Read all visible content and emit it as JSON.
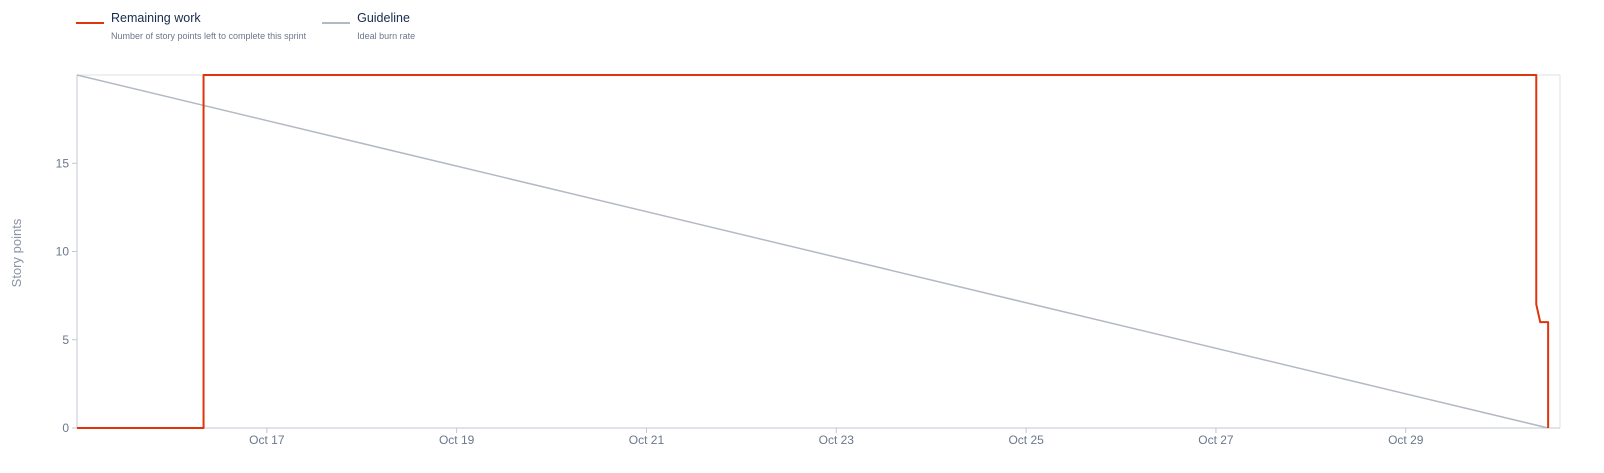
{
  "legend": [
    {
      "name": "Remaining work",
      "desc": "Number of story points left to complete this sprint",
      "color": "#de350b"
    },
    {
      "name": "Guideline",
      "desc": "Ideal burn rate",
      "color": "#b3b9c4"
    }
  ],
  "chart_data": {
    "type": "line",
    "title": "",
    "xlabel": "",
    "ylabel": "Story points",
    "x_axis_type": "date",
    "xlim": [
      "2023-10-15T00:00",
      "2023-10-30T15:00"
    ],
    "ylim": [
      0,
      20
    ],
    "y_ticks": [
      0,
      5,
      10,
      15
    ],
    "x_ticks": [
      "Oct 17",
      "Oct 19",
      "Oct 21",
      "Oct 23",
      "Oct 25",
      "Oct 27",
      "Oct 29"
    ],
    "x_tick_values": [
      "2023-10-17",
      "2023-10-19",
      "2023-10-21",
      "2023-10-23",
      "2023-10-25",
      "2023-10-27",
      "2023-10-29"
    ],
    "grid": false,
    "legend_position": "top-left",
    "series": [
      {
        "name": "Remaining work",
        "color": "#de350b",
        "step": true,
        "points": [
          {
            "x": "2023-10-15T00:00",
            "y": 0
          },
          {
            "x": "2023-10-16T08:00",
            "y": 0
          },
          {
            "x": "2023-10-16T08:00",
            "y": 20
          },
          {
            "x": "2023-10-30T09:00",
            "y": 20
          },
          {
            "x": "2023-10-30T09:00",
            "y": 7
          },
          {
            "x": "2023-10-30T10:00",
            "y": 6
          },
          {
            "x": "2023-10-30T12:00",
            "y": 6
          },
          {
            "x": "2023-10-30T12:00",
            "y": 0
          }
        ]
      },
      {
        "name": "Guideline",
        "color": "#b3b9c4",
        "step": false,
        "points": [
          {
            "x": "2023-10-15T00:00",
            "y": 20
          },
          {
            "x": "2023-10-30T12:00",
            "y": 0
          }
        ]
      }
    ]
  }
}
